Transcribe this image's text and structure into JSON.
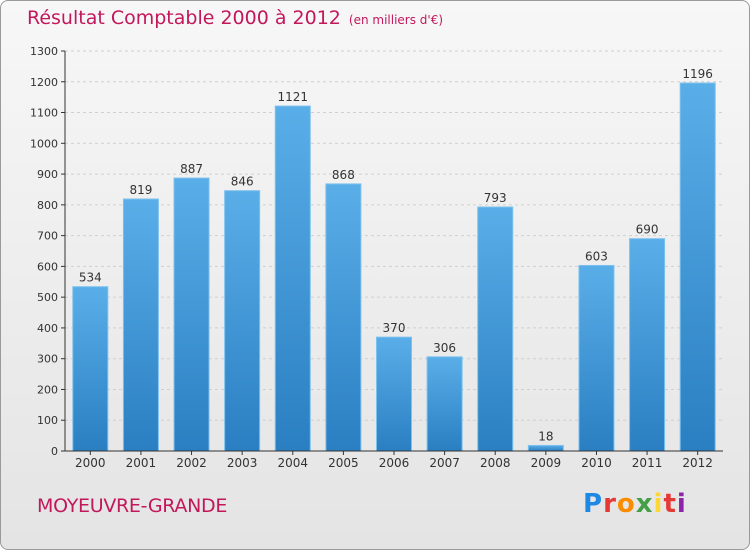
{
  "title": "Résultat Comptable 2000 à 2012",
  "unit_note": "(en milliers d'€)",
  "city": "MOYEUVRE-GRANDE",
  "logo_text": "Proxiti",
  "colors": {
    "title": "#c2185b",
    "bar_top": "#5aaee8",
    "bar_bottom": "#2a7fc2",
    "axis": "#333333",
    "grid": "#d0d0d0"
  },
  "chart_data": {
    "type": "bar",
    "title": "Résultat Comptable 2000 à 2012",
    "categories": [
      "2000",
      "2001",
      "2002",
      "2003",
      "2004",
      "2005",
      "2006",
      "2007",
      "2008",
      "2009",
      "2010",
      "2011",
      "2012"
    ],
    "values": [
      534,
      819,
      887,
      846,
      1121,
      868,
      370,
      306,
      793,
      18,
      603,
      690,
      1196
    ],
    "ylim": [
      0,
      1300
    ],
    "yticks": [
      0,
      100,
      200,
      300,
      400,
      500,
      600,
      700,
      800,
      900,
      1000,
      1100,
      1200,
      1300
    ],
    "xlabel": "",
    "ylabel": "",
    "grid": true
  }
}
